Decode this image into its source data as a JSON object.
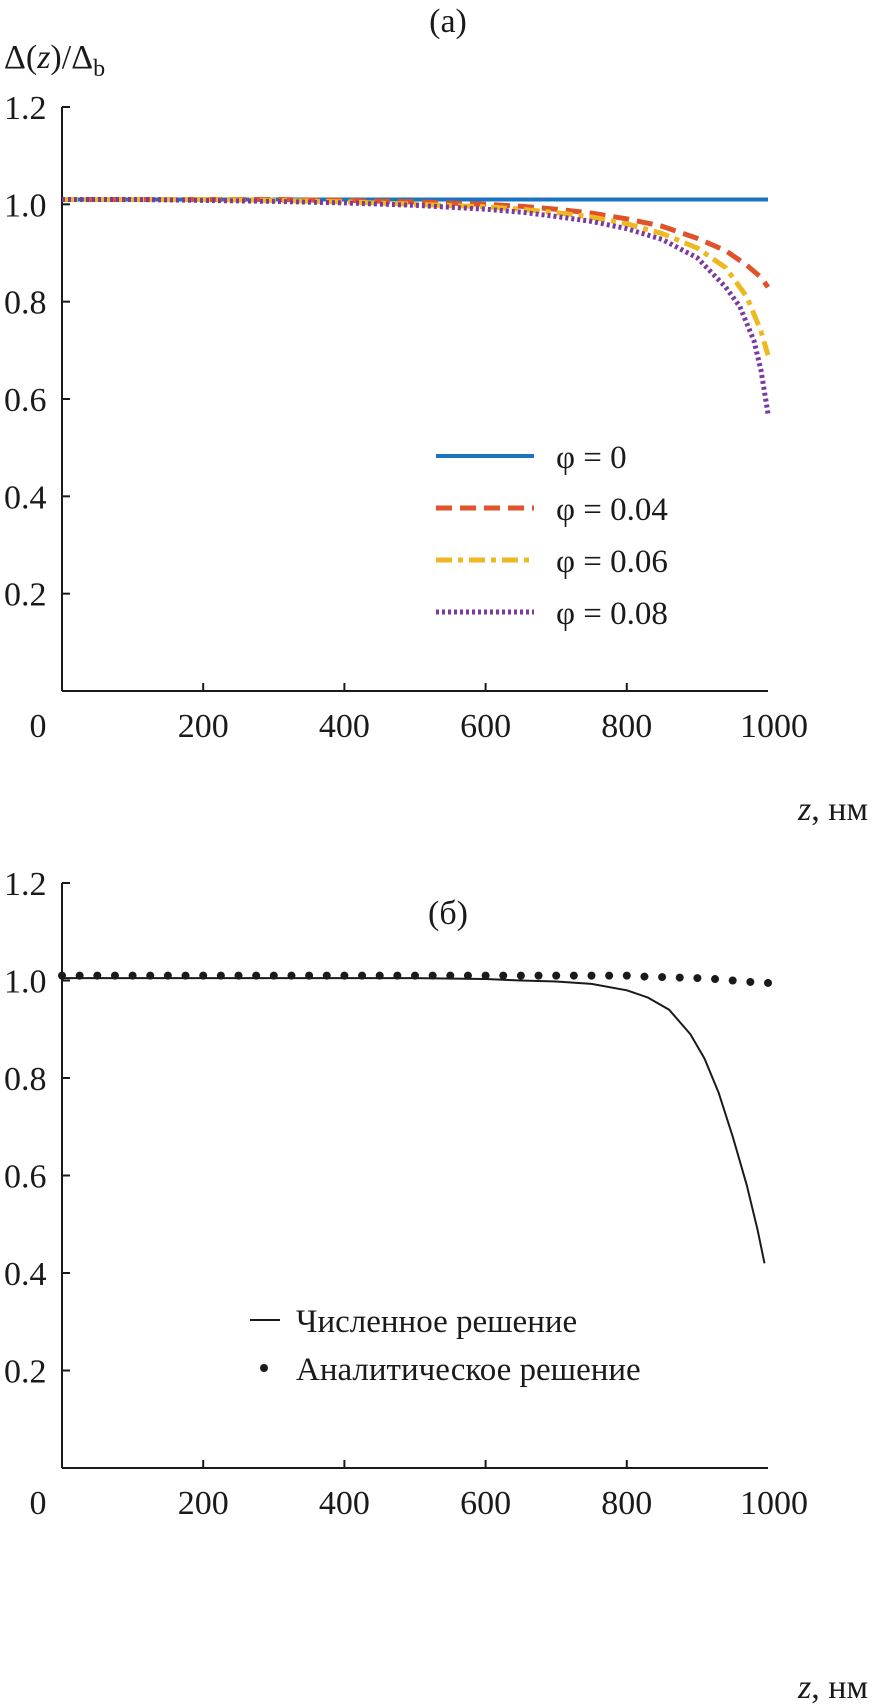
{
  "chart_data": [
    {
      "panel": "(a)",
      "type": "line",
      "ylabel": "Δ(z)/Δb",
      "xlabel": "z, нм",
      "xlim": [
        0,
        1000
      ],
      "ylim": [
        0,
        1.2
      ],
      "xticks": [
        0,
        200,
        400,
        600,
        800,
        1000
      ],
      "yticks": [
        0.2,
        0.4,
        0.6,
        0.8,
        1.0,
        1.2
      ],
      "legend_position": "bottom-right",
      "series": [
        {
          "name": "φ = 0",
          "color": "#1a74c2",
          "style": "solid",
          "x": [
            0,
            100,
            200,
            300,
            400,
            500,
            600,
            700,
            800,
            850,
            900,
            950,
            1000
          ],
          "y": [
            1.01,
            1.01,
            1.01,
            1.01,
            1.01,
            1.01,
            1.01,
            1.01,
            1.01,
            1.01,
            1.01,
            1.01,
            1.01
          ]
        },
        {
          "name": "φ = 0.04",
          "color": "#e0522a",
          "style": "dashed",
          "x": [
            0,
            100,
            200,
            300,
            400,
            500,
            600,
            650,
            700,
            750,
            800,
            850,
            900,
            940,
            970,
            990,
            1000
          ],
          "y": [
            1.01,
            1.01,
            1.01,
            1.01,
            1.008,
            1.005,
            1.0,
            0.996,
            0.99,
            0.982,
            0.97,
            0.955,
            0.93,
            0.905,
            0.875,
            0.85,
            0.83
          ]
        },
        {
          "name": "φ = 0.06",
          "color": "#eeb820",
          "style": "dashdot",
          "x": [
            0,
            100,
            200,
            300,
            400,
            500,
            600,
            650,
            700,
            750,
            800,
            850,
            900,
            940,
            970,
            990,
            1000
          ],
          "y": [
            1.01,
            1.01,
            1.01,
            1.008,
            1.005,
            1.0,
            0.995,
            0.99,
            0.983,
            0.974,
            0.96,
            0.94,
            0.91,
            0.87,
            0.81,
            0.74,
            0.69
          ]
        },
        {
          "name": "φ = 0.08",
          "color": "#7b3aa0",
          "style": "dotted",
          "x": [
            0,
            100,
            200,
            300,
            400,
            500,
            600,
            650,
            700,
            750,
            800,
            850,
            900,
            940,
            960,
            980,
            990,
            1000
          ],
          "y": [
            1.01,
            1.01,
            1.008,
            1.006,
            1.003,
            0.998,
            0.99,
            0.984,
            0.975,
            0.965,
            0.95,
            0.928,
            0.89,
            0.83,
            0.79,
            0.72,
            0.66,
            0.57
          ]
        }
      ]
    },
    {
      "panel": "(б)",
      "type": "line",
      "ylabel": "",
      "xlabel": "z, нм",
      "xlim": [
        0,
        1000
      ],
      "ylim": [
        0,
        1.2
      ],
      "xticks": [
        0,
        200,
        400,
        600,
        800,
        1000
      ],
      "yticks": [
        0.2,
        0.4,
        0.6,
        0.8,
        1.0,
        1.2
      ],
      "legend_position": "bottom-right",
      "series": [
        {
          "name": "Численное решение",
          "color": "#1a1a1a",
          "style": "solid",
          "x": [
            0,
            100,
            200,
            300,
            400,
            500,
            600,
            650,
            700,
            750,
            800,
            830,
            860,
            890,
            910,
            930,
            950,
            970,
            985,
            995
          ],
          "y": [
            1.005,
            1.005,
            1.005,
            1.005,
            1.005,
            1.005,
            1.003,
            1.0,
            0.998,
            0.993,
            0.98,
            0.965,
            0.94,
            0.89,
            0.84,
            0.77,
            0.68,
            0.58,
            0.49,
            0.42
          ]
        },
        {
          "name": "Аналитическое решение",
          "color": "#1a1a1a",
          "style": "markers",
          "x": [
            0,
            25,
            50,
            75,
            100,
            125,
            150,
            175,
            200,
            225,
            250,
            275,
            300,
            325,
            350,
            375,
            400,
            425,
            450,
            475,
            500,
            525,
            550,
            575,
            600,
            625,
            650,
            675,
            700,
            725,
            750,
            775,
            800,
            825,
            850,
            875,
            900,
            925,
            950,
            975,
            1000
          ],
          "y": [
            1.01,
            1.01,
            1.01,
            1.01,
            1.01,
            1.01,
            1.01,
            1.01,
            1.01,
            1.01,
            1.01,
            1.01,
            1.01,
            1.01,
            1.01,
            1.01,
            1.01,
            1.01,
            1.01,
            1.01,
            1.01,
            1.01,
            1.01,
            1.01,
            1.01,
            1.01,
            1.01,
            1.01,
            1.01,
            1.01,
            1.01,
            1.01,
            1.01,
            1.008,
            1.007,
            1.006,
            1.005,
            1.003,
            1.0,
            0.997,
            0.995
          ]
        }
      ]
    }
  ]
}
